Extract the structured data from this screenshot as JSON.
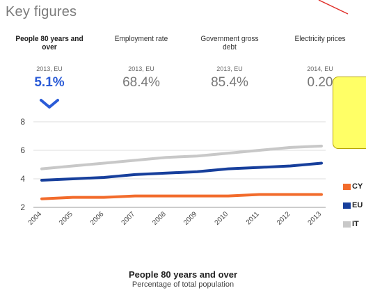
{
  "page_title": "Key figures",
  "metrics": [
    {
      "label": "People 80 years and over",
      "period": "2013, EU",
      "value": "5.1%",
      "active": true
    },
    {
      "label": "Employment rate",
      "period": "2013, EU",
      "value": "68.4%",
      "active": false
    },
    {
      "label": "Government gross debt",
      "period": "2013, EU",
      "value": "85.4%",
      "active": false
    },
    {
      "label": "Electricity prices",
      "period": "2014, EU",
      "value": "0.20",
      "active": false
    }
  ],
  "chart_title": "People 80 years and over",
  "chart_subtitle": "Percentage of total population",
  "colors": {
    "accent": "#2a5bd7",
    "callout": "#ffff66",
    "annotation_line": "#e0302a"
  },
  "chart_data": {
    "type": "line",
    "x": [
      "2004",
      "2005",
      "2006",
      "2007",
      "2008",
      "2009",
      "2010",
      "2011",
      "2012",
      "2013"
    ],
    "ylim": [
      2,
      8
    ],
    "yticks": [
      2,
      4,
      6,
      8
    ],
    "grid": true,
    "legend_position": "right",
    "series": [
      {
        "name": "CY",
        "color": "#f26b2b",
        "values": [
          2.6,
          2.7,
          2.7,
          2.8,
          2.8,
          2.8,
          2.8,
          2.9,
          2.9,
          2.9
        ]
      },
      {
        "name": "EU",
        "color": "#173f9c",
        "values": [
          3.9,
          4.0,
          4.1,
          4.3,
          4.4,
          4.5,
          4.7,
          4.8,
          4.9,
          5.1
        ]
      },
      {
        "name": "IT",
        "color": "#c8c8c8",
        "values": [
          4.7,
          4.9,
          5.1,
          5.3,
          5.5,
          5.6,
          5.8,
          6.0,
          6.2,
          6.3
        ]
      }
    ]
  }
}
